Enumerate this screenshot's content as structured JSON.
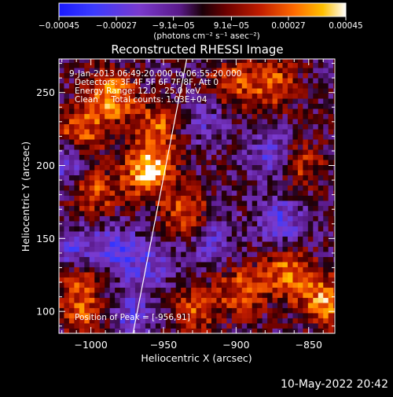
{
  "chart_data": {
    "type": "heatmap",
    "title": "Reconstructed RHESSI Image",
    "xlabel": "Heliocentric X (arcsec)",
    "ylabel": "Heliocentric Y (arcsec)",
    "x_ticks": [
      -1000,
      -950,
      -900,
      -850
    ],
    "y_ticks": [
      100,
      150,
      200,
      250
    ],
    "x_tick_labels": [
      "−1000",
      "−950",
      "−900",
      "−850"
    ],
    "y_tick_labels": [
      "100",
      "150",
      "200",
      "250"
    ],
    "xlim": [
      -1022,
      -832
    ],
    "ylim": [
      85,
      273
    ],
    "colorbar": {
      "range": [
        -0.00045,
        0.00045
      ],
      "tick_values": [
        -0.00045,
        -0.00027,
        -9.1e-05,
        9.1e-05,
        0.00027,
        0.00045
      ],
      "tick_labels": [
        "−0.00045",
        "−0.00027",
        "−9.1e−05",
        "9.1e−05",
        "0.00027",
        "0.00045"
      ],
      "units_label": "(photons cm⁻² s⁻¹ asec⁻²)",
      "colormap": "red-temperature with blue negatives"
    },
    "annotations": [
      " 9-Jan-2013 06:49:20.000 to 06:55:20.000",
      "Detectors: 3F 4F 5F 6F 7F 8F, Att 0",
      "Energy Range: 12.0 - 25.0 keV",
      "Clean     Total counts: 1.03E+04"
    ],
    "peak_label": "Position of Peak = [-956,91]",
    "peak_position": [
      -956,
      91
    ],
    "limb_line": {
      "points": [
        [
          -971,
          85
        ],
        [
          -934,
          273
        ]
      ]
    },
    "grid": false,
    "bright_regions": [
      {
        "x": -962,
        "y": 195,
        "intensity": 1.0
      },
      {
        "x": -988,
        "y": 245,
        "intensity": 0.85
      },
      {
        "x": -1010,
        "y": 220,
        "intensity": 0.7
      },
      {
        "x": -1000,
        "y": 180,
        "intensity": 0.6
      },
      {
        "x": -905,
        "y": 255,
        "intensity": 0.55
      },
      {
        "x": -876,
        "y": 255,
        "intensity": 0.6
      },
      {
        "x": -860,
        "y": 200,
        "intensity": 0.6
      },
      {
        "x": -866,
        "y": 125,
        "intensity": 0.75
      },
      {
        "x": -840,
        "y": 105,
        "intensity": 0.8
      },
      {
        "x": -898,
        "y": 113,
        "intensity": 0.6
      },
      {
        "x": -1010,
        "y": 120,
        "intensity": 0.55
      },
      {
        "x": -1005,
        "y": 95,
        "intensity": 0.5
      },
      {
        "x": -935,
        "y": 165,
        "intensity": 0.65
      },
      {
        "x": -955,
        "y": 225,
        "intensity": 0.6
      },
      {
        "x": -930,
        "y": 100,
        "intensity": 0.55
      }
    ],
    "dark_regions": [
      {
        "x": -1018,
        "y": 200,
        "intensity": -0.6
      },
      {
        "x": -1015,
        "y": 140,
        "intensity": -0.55
      },
      {
        "x": -985,
        "y": 140,
        "intensity": -0.55
      },
      {
        "x": -975,
        "y": 95,
        "intensity": -0.5
      },
      {
        "x": -925,
        "y": 230,
        "intensity": -0.4
      },
      {
        "x": -920,
        "y": 150,
        "intensity": -0.45
      },
      {
        "x": -875,
        "y": 205,
        "intensity": -0.6
      },
      {
        "x": -870,
        "y": 160,
        "intensity": -0.55
      },
      {
        "x": -960,
        "y": 130,
        "intensity": -0.45
      }
    ]
  },
  "footer": {
    "timestamp": "10-May-2022 20:42"
  }
}
